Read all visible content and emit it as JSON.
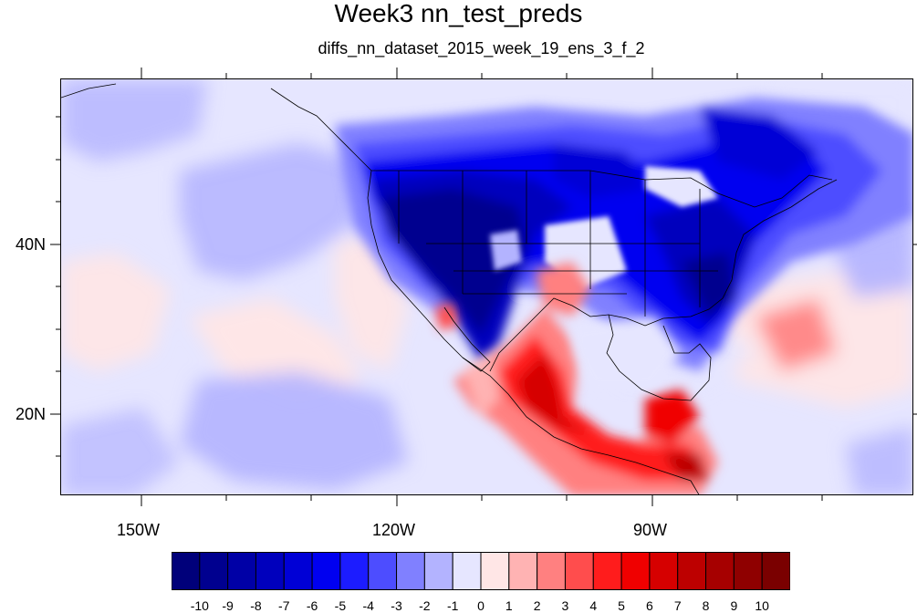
{
  "title": "Week3 nn_test_preds",
  "subtitle": "diffs_nn_dataset_2015_week_19_ens_3_f_2",
  "map": {
    "lat_labels": [
      "40N",
      "20N"
    ],
    "lon_labels": [
      "150W",
      "120W",
      "90W"
    ]
  },
  "colorbar": {
    "labels": [
      "-10",
      "-9",
      "-8",
      "-7",
      "-6",
      "-5",
      "-4",
      "-3",
      "-2",
      "-1",
      "0",
      "1",
      "2",
      "3",
      "4",
      "5",
      "6",
      "7",
      "8",
      "9",
      "10"
    ],
    "colors": [
      "#00007a",
      "#00008f",
      "#0000a6",
      "#0000bd",
      "#0000d6",
      "#0000f0",
      "#1c1cff",
      "#4d4dff",
      "#8080ff",
      "#b3b3ff",
      "#e6e6ff",
      "#ffe6e6",
      "#ffb3b3",
      "#ff8080",
      "#ff4d4d",
      "#ff1c1c",
      "#f00000",
      "#d60000",
      "#bd0000",
      "#a60000",
      "#8f0000",
      "#7a0000"
    ]
  }
}
